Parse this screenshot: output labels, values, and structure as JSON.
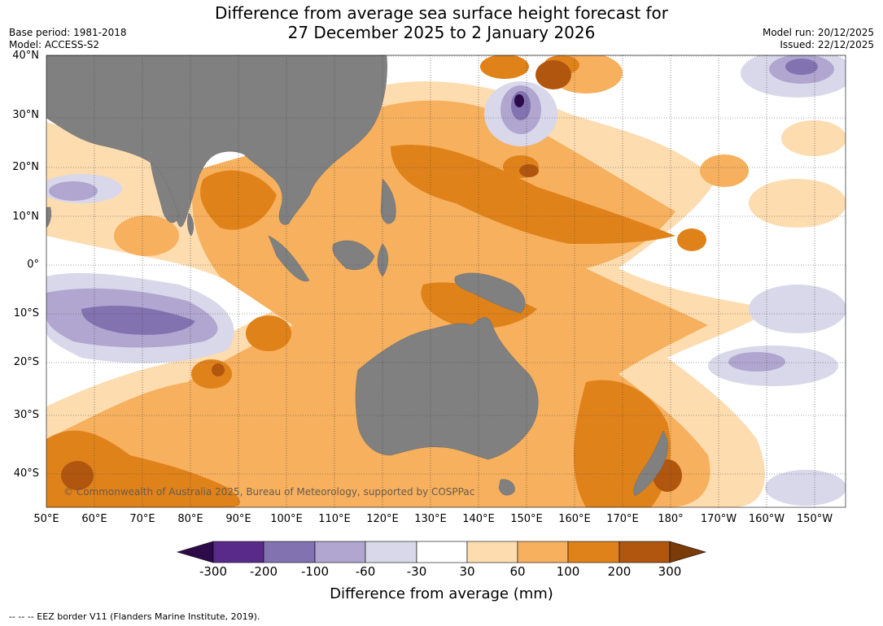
{
  "header": {
    "title_line1": "Difference from average sea surface height forecast for",
    "title_line2": "27 December 2025 to 2 January 2026",
    "base_period": "Base period: 1981-2018",
    "model": "Model: ACCESS-S2",
    "model_run": "Model run: 20/12/2025",
    "issued": "Issued: 22/12/2025"
  },
  "map": {
    "lat_labels": [
      "40°N",
      "30°N",
      "20°N",
      "10°N",
      "0°",
      "10°S",
      "20°S",
      "30°S",
      "40°S"
    ],
    "lon_labels": [
      "50°E",
      "60°E",
      "70°E",
      "80°E",
      "90°E",
      "100°E",
      "110°E",
      "120°E",
      "130°E",
      "140°E",
      "150°E",
      "160°E",
      "170°E",
      "180°",
      "170°W",
      "160°W",
      "150°W"
    ],
    "copyright": "© Commonwealth of Australia 2025, Bureau of Meteorology, supported by COSPPac"
  },
  "colorbar": {
    "ticks": [
      "-300",
      "-200",
      "-100",
      "-60",
      "-30",
      "30",
      "60",
      "100",
      "200",
      "300"
    ],
    "colors": [
      "#2d0a4a",
      "#5a2a8a",
      "#8272b0",
      "#b0a6cf",
      "#d8d8ea",
      "#ffffff",
      "#fddcb0",
      "#f6b05e",
      "#e0821a",
      "#b0560f",
      "#7a3a0a"
    ],
    "label": "Difference from average (mm)"
  },
  "footnote": "--  --  -- EEZ border V11 (Flanders Marine Institute, 2019)."
}
